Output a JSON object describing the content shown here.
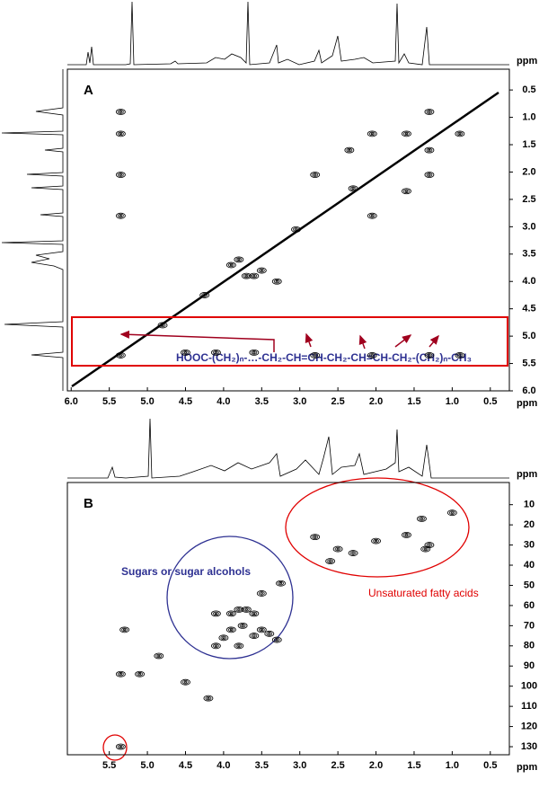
{
  "chart_data": [
    {
      "type": "scatter",
      "panel_label": "A",
      "axis_label": "ppm",
      "color": "#000000",
      "annotation": "HOOC-(CH₂)ₙ-…-CH₂-CH=CH-CH₂-CH=CH-CH₂-(CH₂)ₙ-CH₃",
      "x": [
        5.35,
        5.35,
        5.35,
        5.35,
        5.35,
        2.8,
        2.05,
        1.3,
        0.9,
        4.5,
        4.1,
        3.6,
        2.8,
        2.05,
        1.3,
        2.05,
        1.3,
        0.9,
        1.6,
        2.35,
        1.3,
        1.6,
        3.6,
        3.8,
        3.5,
        3.3,
        4.25,
        3.05,
        2.3,
        4.8,
        3.9,
        3.7
      ],
      "y": [
        0.9,
        1.3,
        2.05,
        2.8,
        5.35,
        5.35,
        5.35,
        5.35,
        5.35,
        5.3,
        5.3,
        5.3,
        2.05,
        1.3,
        0.9,
        2.8,
        2.05,
        1.3,
        2.35,
        1.6,
        1.6,
        1.3,
        3.9,
        3.6,
        3.8,
        4.0,
        4.25,
        3.05,
        2.3,
        4.8,
        3.7,
        3.9
      ],
      "xlim": [
        6.05,
        0.25
      ],
      "ylim": [
        0.12,
        6.0
      ],
      "xticks": [
        {
          "value": 6,
          "label": "6.0"
        },
        5.5,
        {
          "value": 5,
          "label": "5.0"
        },
        4.5,
        {
          "value": 4,
          "label": "4.0"
        },
        3.5,
        {
          "value": 3,
          "label": "3.0"
        },
        2.5,
        {
          "value": 2,
          "label": "2.0"
        },
        1.5,
        {
          "value": 1,
          "label": "1.0"
        },
        0.5
      ],
      "yticks": [
        0.5,
        {
          "value": 1,
          "label": "1.0"
        },
        1.5,
        {
          "value": 2,
          "label": "2.0"
        },
        2.5,
        {
          "value": 3,
          "label": "3.0"
        },
        3.5,
        {
          "value": 4,
          "label": "4.0"
        },
        4.5,
        {
          "value": 5,
          "label": "5.0"
        },
        5.5,
        {
          "value": 6,
          "label": "6.0"
        }
      ]
    },
    {
      "type": "scatter",
      "panel_label": "B",
      "axis_label": "ppm",
      "color": "#000000",
      "annotations": [
        "Sugars or sugar alcohols",
        "Unsaturated fatty acids"
      ],
      "x": [
        1.0,
        1.4,
        1.3,
        1.35,
        1.6,
        2.0,
        2.3,
        2.5,
        2.8,
        2.6,
        3.25,
        3.7,
        3.8,
        3.9,
        3.6,
        4.1,
        3.5,
        3.4,
        3.3,
        3.6,
        3.9,
        4.0,
        3.75,
        3.8,
        4.1,
        3.5,
        5.3,
        5.35,
        5.1,
        4.5,
        4.85,
        4.2,
        5.35
      ],
      "y": [
        14,
        17,
        30,
        32,
        25,
        28,
        34,
        32,
        26,
        38,
        49,
        62,
        62,
        64,
        64,
        64,
        72,
        74,
        77,
        75,
        72,
        76,
        70,
        80,
        80,
        54,
        72,
        94,
        94,
        98,
        85,
        106,
        130
      ],
      "xlim": [
        6.05,
        0.25
      ],
      "ylim": [
        -1,
        134
      ],
      "xticks": [
        5.5,
        {
          "value": 5,
          "label": "5.0"
        },
        4.5,
        {
          "value": 4,
          "label": "4.0"
        },
        3.5,
        {
          "value": 3,
          "label": "3.0"
        },
        2.5,
        {
          "value": 2,
          "label": "2.0"
        },
        1.5,
        {
          "value": 1,
          "label": "1.0"
        },
        0.5
      ],
      "yticks": [
        10,
        20,
        30,
        40,
        50,
        60,
        70,
        80,
        90,
        100,
        110,
        120,
        130
      ]
    }
  ]
}
